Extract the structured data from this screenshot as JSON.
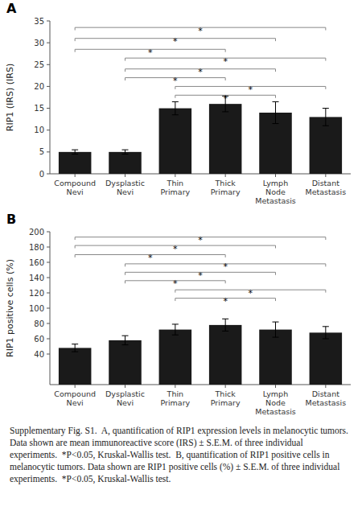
{
  "caption": "Supplementary Fig. S1.  A, quantification of RIP1 expression levels in melanocytic tumors. Data shown are mean immunoreactive score (IRS) ± S.E.M. of three individual experiments.  *P<0.05, Kruskal-Wallis test.  B, quantification of RIP1 positive cells in melanocytic tumors. Data shown are RIP1 positive cells (%) ± S.E.M. of three individual experiments.  *P<0.05, Kruskal-Wallis test.",
  "chart_data": [
    {
      "type": "bar",
      "title": "A",
      "y_label": "RIP1 (IRS) (IRS)",
      "categories": [
        "Compound\nNevi",
        "Dysplastic\nNevi",
        "Thin\nPrimary",
        "Thick\nPrimary",
        "Lymph\nNode\nMetastasis",
        "Distant\nMetastasis"
      ],
      "values": [
        5,
        5,
        15,
        16,
        14,
        13
      ],
      "errors": [
        0.5,
        0.5,
        1.5,
        1.8,
        2.5,
        2.0
      ],
      "color": "#1a1a1a",
      "ylim": [
        0,
        35
      ],
      "yticks": [
        0,
        5,
        10,
        15,
        20,
        25,
        30,
        35
      ],
      "grid": false,
      "annotations": [
        {
          "from": 0,
          "to": 5,
          "y": 33.5,
          "text": "*"
        },
        {
          "from": 0,
          "to": 4,
          "y": 31.0,
          "text": "*"
        },
        {
          "from": 0,
          "to": 3,
          "y": 28.5,
          "text": "*"
        },
        {
          "from": 1,
          "to": 5,
          "y": 26.5,
          "text": "*"
        },
        {
          "from": 1,
          "to": 4,
          "y": 24.0,
          "text": "*"
        },
        {
          "from": 1,
          "to": 3,
          "y": 22.0,
          "text": "*"
        },
        {
          "from": 2,
          "to": 5,
          "y": 20.0,
          "text": "*"
        },
        {
          "from": 2,
          "to": 4,
          "y": 18.0,
          "text": "*"
        }
      ]
    },
    {
      "type": "bar",
      "title": "B",
      "y_label": "RIP1 positive cells (%)",
      "categories": [
        "Compound\nNevi",
        "Dysplastic\nNevi",
        "Thin\nPrimary",
        "Thick\nPrimary",
        "Lymph\nNode\nMetastasis",
        "Distant\nMetastasis"
      ],
      "values": [
        48,
        58,
        72,
        78,
        72,
        68
      ],
      "errors": [
        5,
        6,
        7,
        8,
        10,
        8
      ],
      "color": "#1a1a1a",
      "ylim": [
        0,
        200
      ],
      "yticks": [
        40,
        60,
        80,
        100,
        120,
        140,
        160,
        180,
        200
      ],
      "grid": false,
      "annotations": [
        {
          "from": 0,
          "to": 5,
          "y": 193,
          "text": "*"
        },
        {
          "from": 0,
          "to": 4,
          "y": 182,
          "text": "*"
        },
        {
          "from": 0,
          "to": 3,
          "y": 170,
          "text": "*"
        },
        {
          "from": 1,
          "to": 5,
          "y": 158,
          "text": "*"
        },
        {
          "from": 1,
          "to": 4,
          "y": 147,
          "text": "*"
        },
        {
          "from": 1,
          "to": 3,
          "y": 136,
          "text": "*"
        },
        {
          "from": 2,
          "to": 5,
          "y": 124,
          "text": "*"
        },
        {
          "from": 2,
          "to": 4,
          "y": 113,
          "text": "*"
        }
      ]
    }
  ]
}
